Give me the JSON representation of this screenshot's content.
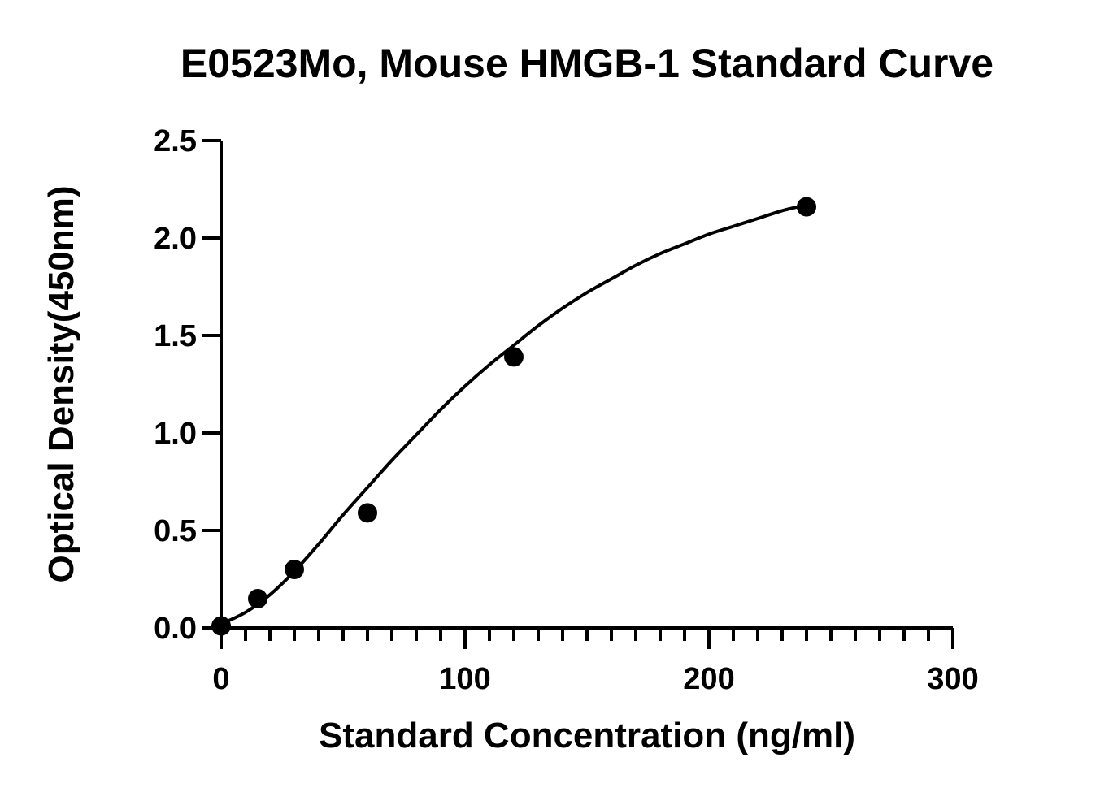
{
  "chart_data": {
    "type": "scatter",
    "title": "E0523Mo, Mouse HMGB-1 Standard Curve",
    "xlabel": "Standard Concentration (ng/ml)",
    "ylabel": "Optical Density(450nm)",
    "xlim": [
      0,
      300
    ],
    "ylim": [
      0,
      2.5
    ],
    "x_ticks": [
      "0",
      "100",
      "200",
      "300"
    ],
    "y_ticks": [
      "0.0",
      "0.5",
      "1.0",
      "1.5",
      "2.0",
      "2.5"
    ],
    "grid": false,
    "series": [
      {
        "x": [
          0,
          15,
          30,
          60,
          120,
          240
        ],
        "y": [
          0.01,
          0.15,
          0.3,
          0.59,
          1.39,
          2.16
        ]
      }
    ],
    "fit_curve": {
      "type": "4PL",
      "x": [
        0,
        10,
        20,
        30,
        40,
        50,
        60,
        70,
        80,
        90,
        100,
        110,
        120,
        130,
        140,
        150,
        160,
        170,
        180,
        190,
        200,
        210,
        220,
        230,
        240
      ],
      "y": [
        0.02,
        0.08,
        0.17,
        0.29,
        0.43,
        0.58,
        0.72,
        0.86,
        0.99,
        1.12,
        1.24,
        1.35,
        1.45,
        1.55,
        1.64,
        1.72,
        1.79,
        1.86,
        1.92,
        1.97,
        2.02,
        2.06,
        2.1,
        2.14,
        2.17
      ]
    },
    "colors": {
      "marker": "#000000",
      "line": "#000000",
      "axis": "#000000"
    }
  }
}
